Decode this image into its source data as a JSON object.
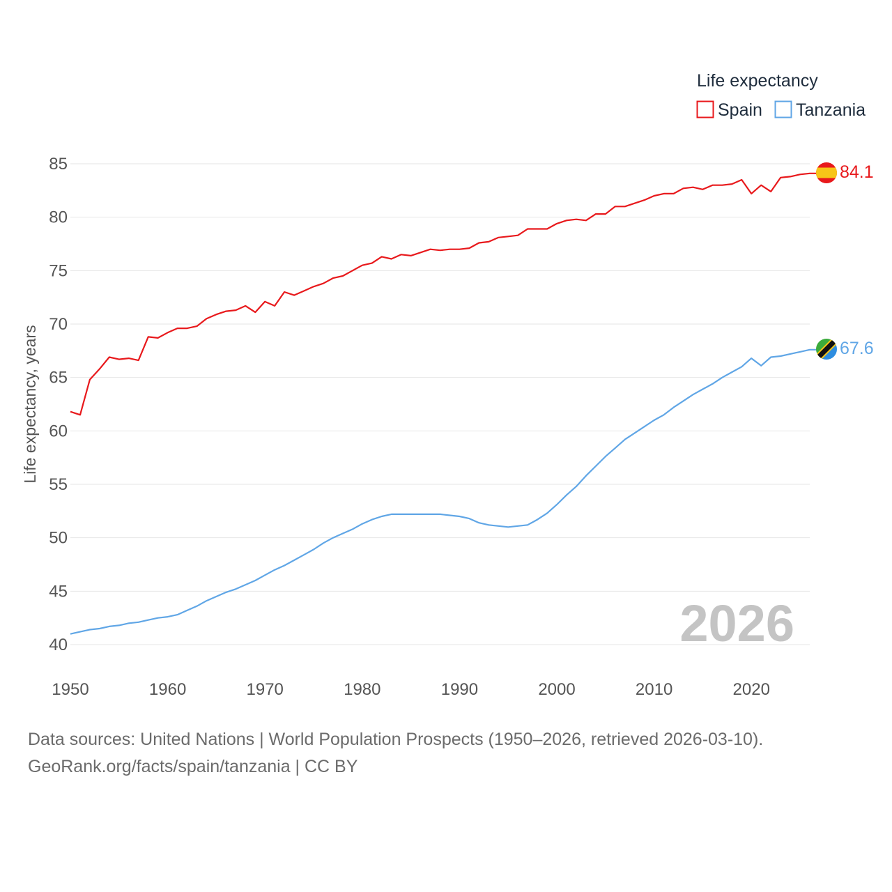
{
  "chart_data": {
    "type": "line",
    "legend_title": "Life expectancy",
    "ylabel": "Life expectancy, years",
    "xlabel": "",
    "ylim": [
      39,
      87
    ],
    "xlim": [
      1950,
      2026
    ],
    "yticks": [
      40,
      45,
      50,
      55,
      60,
      65,
      70,
      75,
      80,
      85
    ],
    "xticks": [
      1950,
      1960,
      1970,
      1980,
      1990,
      2000,
      2010,
      2020
    ],
    "year_watermark": "2026",
    "legend_position": "top-right",
    "x": [
      1950,
      1951,
      1952,
      1953,
      1954,
      1955,
      1956,
      1957,
      1958,
      1959,
      1960,
      1961,
      1962,
      1963,
      1964,
      1965,
      1966,
      1967,
      1968,
      1969,
      1970,
      1971,
      1972,
      1973,
      1974,
      1975,
      1976,
      1977,
      1978,
      1979,
      1980,
      1981,
      1982,
      1983,
      1984,
      1985,
      1986,
      1987,
      1988,
      1989,
      1990,
      1991,
      1992,
      1993,
      1994,
      1995,
      1996,
      1997,
      1998,
      1999,
      2000,
      2001,
      2002,
      2003,
      2004,
      2005,
      2006,
      2007,
      2008,
      2009,
      2010,
      2011,
      2012,
      2013,
      2014,
      2015,
      2016,
      2017,
      2018,
      2019,
      2020,
      2021,
      2022,
      2023,
      2024,
      2025,
      2026
    ],
    "series": [
      {
        "name": "Spain",
        "color": "#e8191c",
        "end_label": "84.1",
        "flag_icon": "spain-flag-icon",
        "values": [
          61.8,
          61.5,
          64.8,
          65.8,
          66.9,
          66.7,
          66.8,
          66.6,
          68.8,
          68.7,
          69.2,
          69.6,
          69.6,
          69.8,
          70.5,
          70.9,
          71.2,
          71.3,
          71.7,
          71.1,
          72.1,
          71.7,
          73.0,
          72.7,
          73.1,
          73.5,
          73.8,
          74.3,
          74.5,
          75.0,
          75.5,
          75.7,
          76.3,
          76.1,
          76.5,
          76.4,
          76.7,
          77.0,
          76.9,
          77.0,
          77.0,
          77.1,
          77.6,
          77.7,
          78.1,
          78.2,
          78.3,
          78.9,
          78.9,
          78.9,
          79.4,
          79.7,
          79.8,
          79.7,
          80.3,
          80.3,
          81.0,
          81.0,
          81.3,
          81.6,
          82.0,
          82.2,
          82.2,
          82.7,
          82.8,
          82.6,
          83.0,
          83.0,
          83.1,
          83.5,
          82.2,
          83.0,
          82.4,
          83.7,
          83.8,
          84.0,
          84.1
        ]
      },
      {
        "name": "Tanzania",
        "color": "#60a6e6",
        "end_label": "67.6",
        "flag_icon": "tanzania-flag-icon",
        "values": [
          41.0,
          41.2,
          41.4,
          41.5,
          41.7,
          41.8,
          42.0,
          42.1,
          42.3,
          42.5,
          42.6,
          42.8,
          43.2,
          43.6,
          44.1,
          44.5,
          44.9,
          45.2,
          45.6,
          46.0,
          46.5,
          47.0,
          47.4,
          47.9,
          48.4,
          48.9,
          49.5,
          50.0,
          50.4,
          50.8,
          51.3,
          51.7,
          52.0,
          52.2,
          52.2,
          52.2,
          52.2,
          52.2,
          52.2,
          52.1,
          52.0,
          51.8,
          51.4,
          51.2,
          51.1,
          51.0,
          51.1,
          51.2,
          51.7,
          52.3,
          53.1,
          54.0,
          54.8,
          55.8,
          56.7,
          57.6,
          58.4,
          59.2,
          59.8,
          60.4,
          61.0,
          61.5,
          62.2,
          62.8,
          63.4,
          63.9,
          64.4,
          65.0,
          65.5,
          66.0,
          66.8,
          66.1,
          66.9,
          67.0,
          67.2,
          67.4,
          67.6
        ]
      }
    ]
  },
  "footer": {
    "source_line": "Data sources: United Nations | World Population Prospects (1950–2026, retrieved 2026-03-10).",
    "attribution_line": "GeoRank.org/facts/spain/tanzania | CC BY"
  }
}
